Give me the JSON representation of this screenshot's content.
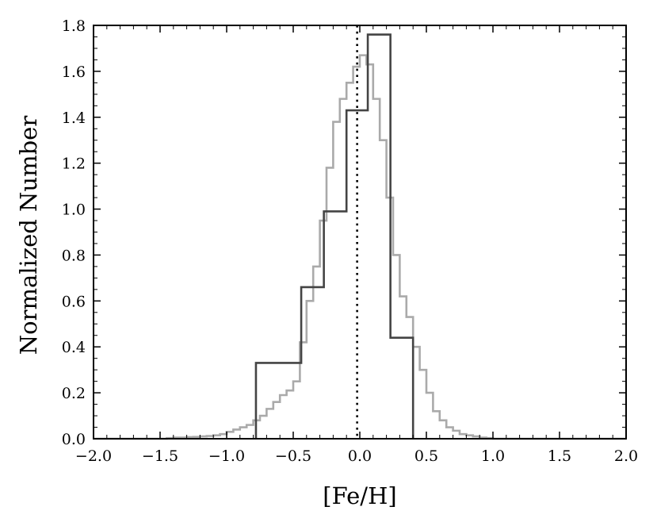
{
  "chart_data": {
    "type": "line",
    "xlabel": "[Fe/H]",
    "ylabel": "Normalized Number",
    "xlim": [
      -2.0,
      2.0
    ],
    "ylim": [
      0.0,
      1.8
    ],
    "xticks": [
      "−2.0",
      "−1.5",
      "−1.0",
      "−0.5",
      "0.0",
      "0.5",
      "1.0",
      "1.5",
      "2.0"
    ],
    "yticks": [
      "0.0",
      "0.2",
      "0.4",
      "0.6",
      "0.8",
      "1.0",
      "1.2",
      "1.4",
      "1.6",
      "1.8"
    ],
    "grid": false,
    "reference_line": {
      "x": -0.02,
      "style": "dotted",
      "color": "#000000"
    },
    "series": [
      {
        "color": "#aaaaaa",
        "drawstyle": "steps",
        "edges": [
          -2.0,
          -1.95,
          -1.9,
          -1.85,
          -1.8,
          -1.75,
          -1.7,
          -1.65,
          -1.6,
          -1.55,
          -1.5,
          -1.45,
          -1.4,
          -1.35,
          -1.3,
          -1.25,
          -1.2,
          -1.15,
          -1.1,
          -1.05,
          -1.0,
          -0.95,
          -0.9,
          -0.85,
          -0.8,
          -0.75,
          -0.7,
          -0.65,
          -0.6,
          -0.55,
          -0.5,
          -0.45,
          -0.4,
          -0.35,
          -0.3,
          -0.25,
          -0.2,
          -0.15,
          -0.1,
          -0.05,
          0.0,
          0.05,
          0.1,
          0.15,
          0.2,
          0.25,
          0.3,
          0.35,
          0.4,
          0.45,
          0.5,
          0.55,
          0.6,
          0.65,
          0.7,
          0.75,
          0.8,
          0.85,
          0.9,
          0.95,
          1.0,
          1.05,
          1.1,
          1.15,
          1.2,
          1.25,
          1.3,
          1.35,
          1.4,
          1.45,
          1.5,
          1.55,
          1.6,
          1.65,
          1.7,
          1.75,
          1.8,
          1.85,
          1.9,
          1.95,
          2.0
        ],
        "values": [
          0.0,
          0.0,
          0.0,
          0.0,
          0.0,
          0.0,
          0.0,
          0.0,
          0.0,
          0.0,
          0.0,
          0.003,
          0.005,
          0.005,
          0.007,
          0.008,
          0.01,
          0.012,
          0.015,
          0.02,
          0.03,
          0.04,
          0.05,
          0.06,
          0.08,
          0.1,
          0.13,
          0.16,
          0.19,
          0.21,
          0.25,
          0.42,
          0.6,
          0.75,
          0.95,
          1.18,
          1.38,
          1.48,
          1.55,
          1.62,
          1.67,
          1.63,
          1.48,
          1.3,
          1.05,
          0.8,
          0.62,
          0.53,
          0.4,
          0.3,
          0.2,
          0.12,
          0.08,
          0.05,
          0.035,
          0.02,
          0.015,
          0.01,
          0.005,
          0.003,
          0.0,
          0.0,
          0.0,
          0.0,
          0.0,
          0.0,
          0.0,
          0.0,
          0.0,
          0.0,
          0.0,
          0.0,
          0.0,
          0.0,
          0.0,
          0.0,
          0.0,
          0.0,
          0.0,
          0.0
        ]
      },
      {
        "color": "#444444",
        "drawstyle": "steps",
        "edges": [
          -0.78,
          -0.44,
          -0.27,
          -0.1,
          0.06,
          0.23,
          0.4
        ],
        "values": [
          0.33,
          0.66,
          0.99,
          1.43,
          1.76,
          0.44
        ]
      }
    ]
  }
}
